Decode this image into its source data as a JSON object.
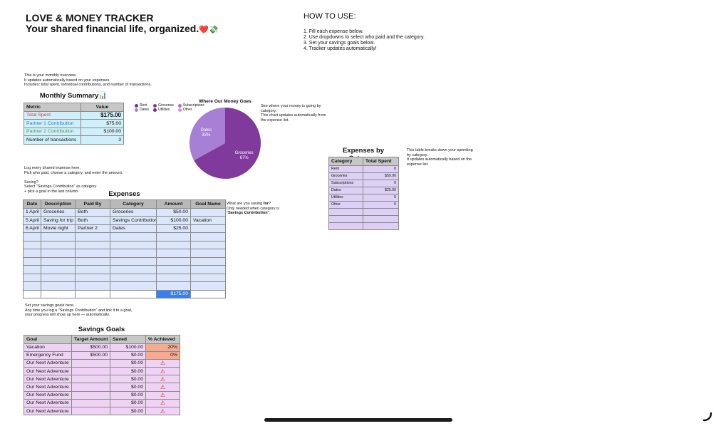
{
  "header": {
    "title": "LOVE & MONEY TRACKER",
    "subtitle": "Your shared financial life, organized.",
    "subtitle_emoji": "❤️💸"
  },
  "howto": {
    "heading": "HOW TO USE:",
    "steps": [
      "1. Fill each expense below.",
      "2. Use dropdowns to select who paid and the category.",
      "3. Set your savings goals below.",
      "4. Tracker updates automatically!"
    ]
  },
  "overview_note": {
    "line1": "This is your monthly overview.",
    "line2": "It updates automatically based on your expenses.",
    "line3": "Includes: total spent, individual contributions, and number of transactions."
  },
  "summary": {
    "title": "Monthly Summary",
    "title_emoji": "📊",
    "col_metric": "Metric",
    "col_value": "Value",
    "rows": [
      {
        "metric": "Total Spent",
        "value": "$175.00"
      },
      {
        "metric": "Partner 1 Contribution",
        "value": "$75.00"
      },
      {
        "metric": "Partner 2 Contribution",
        "value": "$100.00"
      },
      {
        "metric": "Number of transactions",
        "value": "3"
      }
    ]
  },
  "chart_data": {
    "type": "pie",
    "title": "Where Our Money Goes",
    "legend": [
      "Rent",
      "Groceries",
      "Subscriptions",
      "Dates",
      "Utilities",
      "Other"
    ],
    "legend_placement": "top",
    "slices": [
      {
        "label": "Groceries",
        "value": 67,
        "pct_label": "67%"
      },
      {
        "label": "Dates",
        "value": 33,
        "pct_label": "33%"
      }
    ],
    "colors": {
      "Rent": "#7b2f97",
      "Groceries": "#7f3a9c",
      "Subscriptions": "#d458c8",
      "Dates": "#a77fd4",
      "Utilities": "#8b1f74",
      "Other": "#c995e3"
    }
  },
  "chart_note": {
    "line1": "See where your money is going by",
    "line2": "category.",
    "line3": "This chart updates automatically from",
    "line4": "the expense list."
  },
  "expenses_note": {
    "line1": "Log every shared expense here.",
    "line2": "Pick who paid, choose a category, and enter the amount.",
    "line3": "",
    "line4": "Saving?",
    "line5": "Select \"Savings Contribution\" as category",
    "line6": "+ pick a goal in the last column."
  },
  "expenses": {
    "title": "Expenses",
    "columns": [
      "Date",
      "Description",
      "Paid By",
      "Category",
      "Amount",
      "Goal Name"
    ],
    "rows": [
      {
        "date": "1 April",
        "description": "Groceries",
        "paid_by": "Both",
        "category": "Groceries",
        "amount": "$50.00",
        "goal": ""
      },
      {
        "date": "5 April",
        "description": "Saving for trip",
        "paid_by": "Both",
        "category": "Savings Contribution",
        "amount": "$100.00",
        "goal": "Vacation"
      },
      {
        "date": "6 April",
        "description": "Movie night",
        "paid_by": "Partner 2",
        "category": "Dates",
        "amount": "$25.00",
        "goal": ""
      }
    ],
    "empty_rows": 7,
    "total": "$175.00"
  },
  "goal_note": {
    "line1": "What are you saving ",
    "line1_bold": "for",
    "line1_end": "?",
    "line2": "Only needed when category is",
    "line3_pre": "\"",
    "line3_bold": "Savings Contribution",
    "line3_end": "\"."
  },
  "category": {
    "title": "Expenses by Category",
    "col_category": "Category",
    "col_total": "Total Spent",
    "rows": [
      {
        "category": "Rent",
        "total": "0"
      },
      {
        "category": "Groceries",
        "total": "$50.00"
      },
      {
        "category": "Subscriptions",
        "total": "0"
      },
      {
        "category": "Dates",
        "total": "$25.00"
      },
      {
        "category": "Utilities",
        "total": "0"
      },
      {
        "category": "Other",
        "total": "0"
      }
    ],
    "empty_rows": 3
  },
  "category_note": {
    "line1": "This table breaks down your spending",
    "line2": "by category.",
    "line3": "It updates automatically based on the",
    "line4": "expense list."
  },
  "goals_note": {
    "line1": "Set your savings goals here.",
    "line2": "Any time you log a \"Savings Contribution\" and link it to a goal,",
    "line3": "your progress will show up here — automatically."
  },
  "goals": {
    "title": "Savings Goals",
    "columns": [
      "Goal",
      "Target Amount",
      "Saved",
      "% Achieved"
    ],
    "rows": [
      {
        "goal": "Vacation",
        "target": "$500.00",
        "saved": "$100.00",
        "pct": "20%"
      },
      {
        "goal": "Emergency Fund",
        "target": "$500.00",
        "saved": "$0.00",
        "pct": "0%"
      },
      {
        "goal": "Our Next Adventure",
        "target": "",
        "saved": "$0.00",
        "pct": "⚠"
      },
      {
        "goal": "Our Next Adventure",
        "target": "",
        "saved": "$0.00",
        "pct": "⚠"
      },
      {
        "goal": "Our Next Adventure",
        "target": "",
        "saved": "$0.00",
        "pct": "⚠"
      },
      {
        "goal": "Our Next Adventure",
        "target": "",
        "saved": "$0.00",
        "pct": "⚠"
      },
      {
        "goal": "Our Next Adventure",
        "target": "",
        "saved": "$0.00",
        "pct": "⚠"
      },
      {
        "goal": "Our Next Adventure",
        "target": "",
        "saved": "$0.00",
        "pct": "⚠"
      },
      {
        "goal": "Our Next Adventure",
        "target": "",
        "saved": "$0.00",
        "pct": "⚠"
      }
    ]
  },
  "colors": {
    "summary_bg": "#cfeffb",
    "partner1": "#2c78d6",
    "partner2": "#3ea24a",
    "total_spent": "#c93b3b",
    "expenses_bg": "#dbe6fb",
    "total_cell": "#3a7ff0",
    "category_bg": "#dcd0f4",
    "goals_bg": "#efd3f5",
    "pct_bg": "#f6aa90",
    "warning": "#e0231b"
  }
}
